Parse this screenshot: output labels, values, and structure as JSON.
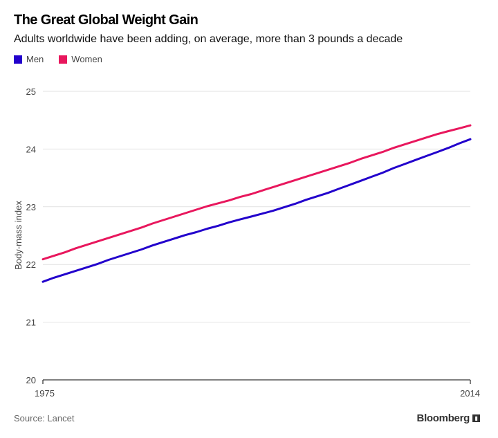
{
  "chart_data": {
    "type": "line",
    "title": "The Great Global Weight Gain",
    "subtitle": "Adults worldwide have been adding, on average, more than 3 pounds a decade",
    "xlabel": "",
    "ylabel": "Body-mass index",
    "xlim": [
      1975,
      2014
    ],
    "ylim": [
      20,
      25
    ],
    "xticks": [
      "1975",
      "2014"
    ],
    "yticks": [
      20,
      21,
      22,
      23,
      24,
      25
    ],
    "grid": true,
    "legend_position": "top-left",
    "x": [
      1975,
      1976,
      1977,
      1978,
      1979,
      1980,
      1981,
      1982,
      1983,
      1984,
      1985,
      1986,
      1987,
      1988,
      1989,
      1990,
      1991,
      1992,
      1993,
      1994,
      1995,
      1996,
      1997,
      1998,
      1999,
      2000,
      2001,
      2002,
      2003,
      2004,
      2005,
      2006,
      2007,
      2008,
      2009,
      2010,
      2011,
      2012,
      2013,
      2014
    ],
    "series": [
      {
        "name": "Men",
        "color": "#2200CC",
        "values": [
          21.7,
          21.77,
          21.83,
          21.89,
          21.95,
          22.01,
          22.08,
          22.14,
          22.2,
          22.26,
          22.33,
          22.39,
          22.45,
          22.51,
          22.56,
          22.62,
          22.67,
          22.73,
          22.78,
          22.83,
          22.88,
          22.93,
          22.99,
          23.05,
          23.12,
          23.18,
          23.24,
          23.31,
          23.38,
          23.45,
          23.52,
          23.59,
          23.67,
          23.74,
          23.81,
          23.88,
          23.95,
          24.02,
          24.1,
          24.17
        ]
      },
      {
        "name": "Women",
        "color": "#E8175D",
        "values": [
          22.09,
          22.15,
          22.21,
          22.28,
          22.34,
          22.4,
          22.46,
          22.52,
          22.58,
          22.64,
          22.71,
          22.77,
          22.83,
          22.89,
          22.95,
          23.01,
          23.06,
          23.11,
          23.17,
          23.22,
          23.28,
          23.34,
          23.4,
          23.46,
          23.52,
          23.58,
          23.64,
          23.7,
          23.76,
          23.83,
          23.89,
          23.95,
          24.02,
          24.08,
          24.14,
          24.2,
          24.26,
          24.31,
          24.36,
          24.41
        ]
      }
    ]
  },
  "legend": {
    "men_label": "Men",
    "women_label": "Women"
  },
  "footer": {
    "source": "Source: Lancet",
    "brand": "Bloomberg"
  }
}
